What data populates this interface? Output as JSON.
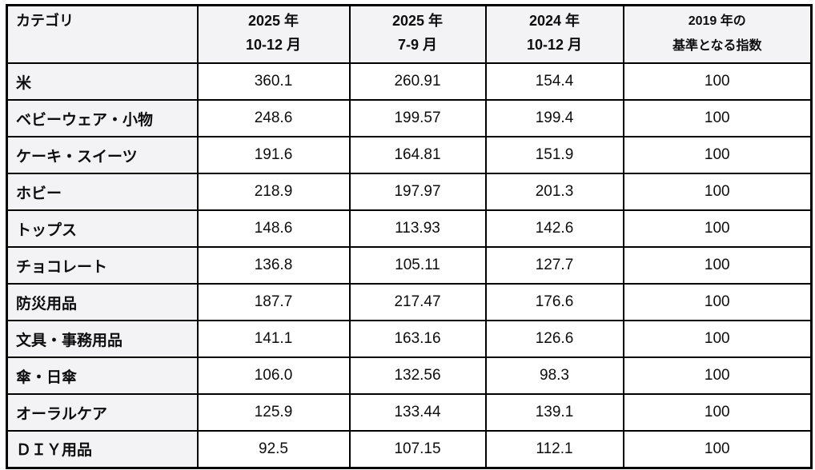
{
  "table": {
    "header": [
      {
        "lines": [
          "カテゴリ",
          ""
        ]
      },
      {
        "lines": [
          "2025 年",
          "10-12 月"
        ]
      },
      {
        "lines": [
          "2025 年",
          "7-9 月"
        ]
      },
      {
        "lines": [
          "2024 年",
          "10-12 月"
        ]
      },
      {
        "lines": [
          "2019 年の",
          "基準となる指数"
        ]
      }
    ],
    "rows": [
      {
        "category": "米",
        "values": [
          "360.1",
          "260.91",
          "154.4",
          "100"
        ]
      },
      {
        "category": "ベビーウェア・小物",
        "values": [
          "248.6",
          "199.57",
          "199.4",
          "100"
        ]
      },
      {
        "category": "ケーキ・スイーツ",
        "values": [
          "191.6",
          "164.81",
          "151.9",
          "100"
        ]
      },
      {
        "category": "ホビー",
        "values": [
          "218.9",
          "197.97",
          "201.3",
          "100"
        ]
      },
      {
        "category": "トップス",
        "values": [
          "148.6",
          "113.93",
          "142.6",
          "100"
        ]
      },
      {
        "category": "チョコレート",
        "values": [
          "136.8",
          "105.11",
          "127.7",
          "100"
        ]
      },
      {
        "category": "防災用品",
        "values": [
          "187.7",
          "217.47",
          "176.6",
          "100"
        ]
      },
      {
        "category": "文具・事務用品",
        "values": [
          "141.1",
          "163.16",
          "126.6",
          "100"
        ]
      },
      {
        "category": "傘・日傘",
        "values": [
          "106.0",
          "132.56",
          "98.3",
          "100"
        ]
      },
      {
        "category": "オーラルケア",
        "values": [
          "125.9",
          "133.44",
          "139.1",
          "100"
        ]
      },
      {
        "category": "ＤＩＹ用品",
        "values": [
          "92.5",
          "107.15",
          "112.1",
          "100"
        ]
      }
    ]
  },
  "colors": {
    "header_bg": "#f3f3f6",
    "category_bg": "#f3f3f6",
    "cell_bg": "#ffffff",
    "border": "#000000",
    "text": "#0d0d0d"
  }
}
